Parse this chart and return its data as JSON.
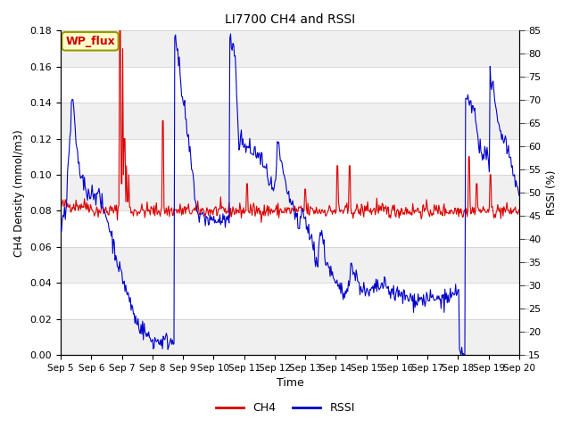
{
  "title": "LI7700 CH4 and RSSI",
  "xlabel": "Time",
  "ylabel_left": "CH4 Density (mmol/m3)",
  "ylabel_right": "RSSI (%)",
  "ylim_left": [
    0.0,
    0.18
  ],
  "ylim_right": [
    15,
    85
  ],
  "yticks_left": [
    0.0,
    0.02,
    0.04,
    0.06,
    0.08,
    0.1,
    0.12,
    0.14,
    0.16,
    0.18
  ],
  "yticks_right": [
    15,
    20,
    25,
    30,
    35,
    40,
    45,
    50,
    55,
    60,
    65,
    70,
    75,
    80,
    85
  ],
  "x_labels": [
    "Sep 5",
    "Sep 6",
    "Sep 7",
    "Sep 8",
    "Sep 9",
    "Sep 10",
    "Sep 11",
    "Sep 12",
    "Sep 13",
    "Sep 14",
    "Sep 15",
    "Sep 16",
    "Sep 17",
    "Sep 18",
    "Sep 19",
    "Sep 20"
  ],
  "ch4_color": "#dd0000",
  "rssi_color": "#0000cc",
  "legend_label_ch4": "CH4",
  "legend_label_rssi": "RSSI",
  "wp_flux_label": "WP_flux",
  "wp_flux_text_color": "#cc0000",
  "wp_flux_bg": "#ffffcc",
  "wp_flux_border": "#999900",
  "band_color_light": "#f0f0f0",
  "band_color_white": "#ffffff",
  "n_points": 600,
  "rssi_noise_sigma": 1.0,
  "ch4_noise_sigma": 0.002
}
